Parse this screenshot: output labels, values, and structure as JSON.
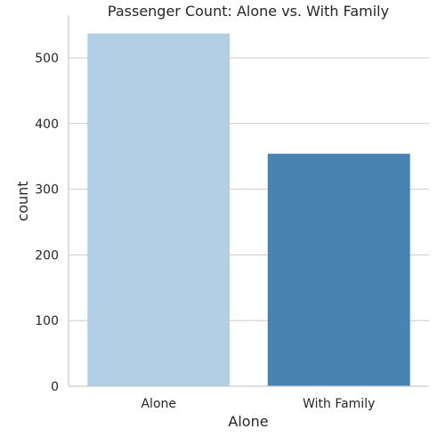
{
  "chart_data": {
    "type": "bar",
    "title": "Passenger Count: Alone vs. With Family",
    "xlabel": "Alone",
    "ylabel": "count",
    "categories": [
      "Alone",
      "With Family"
    ],
    "values": [
      537,
      354
    ],
    "colors": [
      "#b3cfe3",
      "#4884b3"
    ],
    "ylim": [
      0,
      565
    ],
    "yticks": [
      0,
      100,
      200,
      300,
      400,
      500
    ],
    "grid": true,
    "legend": "none"
  }
}
